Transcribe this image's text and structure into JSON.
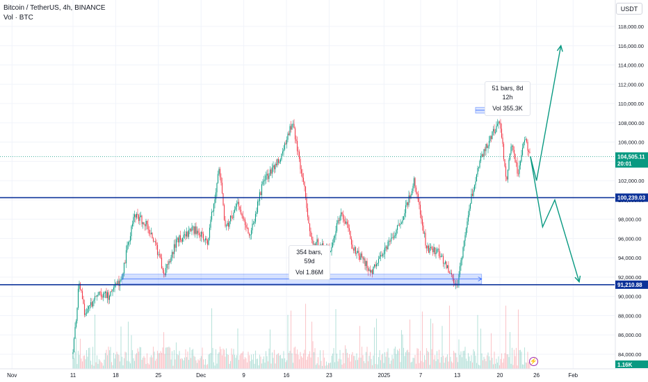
{
  "header": {
    "symbol_line": "Bitcoin / TetherUS, 4h, BINANCE",
    "volume_line": "Vol · BTC"
  },
  "currency_label": "USDT",
  "price_axis": {
    "ticks": [
      "118,000.00",
      "116,000.00",
      "114,000.00",
      "112,000.00",
      "110,000.00",
      "108,000.00",
      "106,000.00",
      "104,000.00",
      "102,000.00",
      "100,000.00",
      "98,000.00",
      "96,000.00",
      "94,000.00",
      "92,000.00",
      "90,000.00",
      "88,000.00",
      "86,000.00",
      "84,000.00"
    ],
    "tick_values": [
      118000,
      116000,
      114000,
      112000,
      110000,
      108000,
      106000,
      104000,
      102000,
      100000,
      98000,
      96000,
      94000,
      92000,
      90000,
      88000,
      86000,
      84000
    ]
  },
  "price_badges": {
    "current_price": "104,505.11",
    "countdown": "20:01",
    "upper_level": "100,239.03",
    "lower_level": "91,210.88",
    "volume": "1.16K"
  },
  "time_axis": {
    "labels": [
      "Nov",
      "11",
      "18",
      "25",
      "Dec",
      "9",
      "16",
      "23",
      "2025",
      "7",
      "13",
      "20",
      "26",
      "Feb"
    ]
  },
  "measurements": {
    "recent": {
      "bars": "51 bars, 8d 12h",
      "vol": "Vol 355.3K"
    },
    "range": {
      "bars": "354 bars, 59d",
      "vol": "Vol 1.86M"
    }
  },
  "colors": {
    "up": "#089981",
    "down": "#f23645",
    "level_line": "#0c3299",
    "forecast": "#089981",
    "range_fill": "#2962ff",
    "current_price": "#089981",
    "flash": "#9c27b0"
  },
  "icons": {
    "flash": "lightning-icon"
  },
  "chart_data": {
    "type": "candlestick",
    "symbol": "Bitcoin / TetherUS",
    "timeframe": "4h",
    "exchange": "BINANCE",
    "ylim": [
      83000,
      119000
    ],
    "price_path": [
      {
        "date": "2024-11-11",
        "price": 84000
      },
      {
        "date": "2024-11-12",
        "price": 91500
      },
      {
        "date": "2024-11-13",
        "price": 88000
      },
      {
        "date": "2024-11-15",
        "price": 90500
      },
      {
        "date": "2024-11-17",
        "price": 90000
      },
      {
        "date": "2024-11-19",
        "price": 92000
      },
      {
        "date": "2024-11-21",
        "price": 98500
      },
      {
        "date": "2024-11-23",
        "price": 97500
      },
      {
        "date": "2024-11-25",
        "price": 94500
      },
      {
        "date": "2024-11-26",
        "price": 92200
      },
      {
        "date": "2024-11-28",
        "price": 95800
      },
      {
        "date": "2024-12-01",
        "price": 97000
      },
      {
        "date": "2024-12-03",
        "price": 95500
      },
      {
        "date": "2024-12-05",
        "price": 103200
      },
      {
        "date": "2024-12-06",
        "price": 97000
      },
      {
        "date": "2024-12-08",
        "price": 99500
      },
      {
        "date": "2024-12-10",
        "price": 96000
      },
      {
        "date": "2024-12-12",
        "price": 101500
      },
      {
        "date": "2024-12-15",
        "price": 104500
      },
      {
        "date": "2024-12-17",
        "price": 108000
      },
      {
        "date": "2024-12-19",
        "price": 101000
      },
      {
        "date": "2024-12-20",
        "price": 96000
      },
      {
        "date": "2024-12-23",
        "price": 94500
      },
      {
        "date": "2024-12-25",
        "price": 99000
      },
      {
        "date": "2024-12-27",
        "price": 95000
      },
      {
        "date": "2024-12-30",
        "price": 92500
      },
      {
        "date": "2025-01-01",
        "price": 94500
      },
      {
        "date": "2025-01-04",
        "price": 98000
      },
      {
        "date": "2025-01-06",
        "price": 102000
      },
      {
        "date": "2025-01-08",
        "price": 95000
      },
      {
        "date": "2025-01-10",
        "price": 94500
      },
      {
        "date": "2025-01-13",
        "price": 91000
      },
      {
        "date": "2025-01-15",
        "price": 99500
      },
      {
        "date": "2025-01-17",
        "price": 104500
      },
      {
        "date": "2025-01-20",
        "price": 108300
      },
      {
        "date": "2025-01-21",
        "price": 102000
      },
      {
        "date": "2025-01-22",
        "price": 106000
      },
      {
        "date": "2025-01-23",
        "price": 102500
      },
      {
        "date": "2025-01-24",
        "price": 106500
      },
      {
        "date": "2025-01-25",
        "price": 104505
      }
    ],
    "levels": [
      100239.03,
      91210.88
    ],
    "current_price": 104505.11,
    "forecast_paths": [
      [
        {
          "date": "2025-01-25",
          "price": 104505
        },
        {
          "date": "2025-01-26",
          "price": 102000
        },
        {
          "date": "2025-01-30",
          "price": 116000
        }
      ],
      [
        {
          "date": "2025-01-25",
          "price": 104505
        },
        {
          "date": "2025-01-27",
          "price": 97200
        },
        {
          "date": "2025-01-29",
          "price": 100000
        },
        {
          "date": "2025-02-02",
          "price": 91500
        }
      ]
    ],
    "ranges": [
      {
        "start": "2024-11-19",
        "end": "2025-01-17",
        "low": 91300,
        "high": 92300,
        "bars": 354,
        "duration": "59d",
        "volume": "1.86M"
      },
      {
        "start": "2025-01-16",
        "end": "2025-01-24",
        "low": 109000,
        "high": 109600,
        "bars": 51,
        "duration": "8d 12h",
        "volume": "355.3K"
      }
    ],
    "volume_last": "1.16K"
  }
}
